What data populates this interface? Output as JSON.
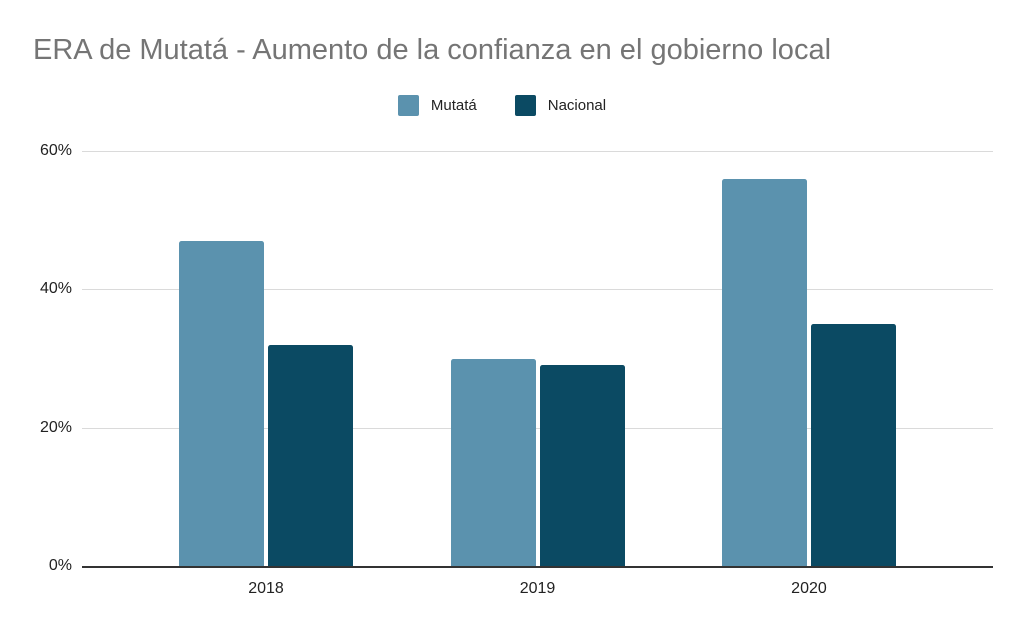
{
  "chart_data": {
    "type": "bar",
    "title": "ERA de Mutatá - Aumento de la confianza en el gobierno local",
    "categories": [
      "2018",
      "2019",
      "2020"
    ],
    "series": [
      {
        "name": "Mutatá",
        "color": "#5b92ae",
        "values": [
          47,
          30,
          56
        ]
      },
      {
        "name": "Nacional",
        "color": "#0b4a63",
        "values": [
          32,
          29,
          35
        ]
      }
    ],
    "xlabel": "",
    "ylabel": "",
    "ylim": [
      0,
      60
    ],
    "yticks": [
      {
        "value": 0,
        "label": "0%"
      },
      {
        "value": 20,
        "label": "20%"
      },
      {
        "value": 40,
        "label": "40%"
      },
      {
        "value": 60,
        "label": "60%"
      }
    ],
    "grid": true,
    "legend_position": "top"
  },
  "colors": {
    "title_text": "#757575",
    "axis_text": "#222222",
    "gridline": "#dadada",
    "axis_line": "#333333",
    "background": "#ffffff"
  }
}
